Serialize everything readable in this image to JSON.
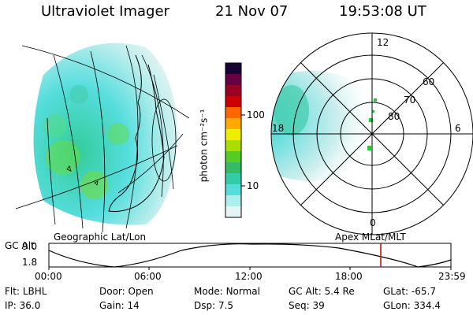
{
  "header": {
    "title": "Ultraviolet Imager",
    "date": "21 Nov 07",
    "time": "19:53:08 UT"
  },
  "colorbar": {
    "label": "photon cm⁻²s⁻¹",
    "ticks": [
      "100",
      "10"
    ],
    "scale": "log"
  },
  "polar": {
    "mlt_labels": {
      "top": "12",
      "left": "18",
      "right": "6",
      "bottom": "0"
    },
    "lat_labels": [
      "60",
      "70",
      "80"
    ]
  },
  "labels": {
    "left_map": "Geographic Lat/Lon",
    "right_map": "Apex MLat/MLT"
  },
  "orbit": {
    "ylabel": "GC Alt",
    "y_ticks": [
      "9.0",
      "1.8"
    ],
    "x_ticks": [
      "00:00",
      "06:00",
      "12:00",
      "18:00",
      "23:59"
    ],
    "marker_color": "#cc0000"
  },
  "info": {
    "row1": [
      {
        "key": "Flt:",
        "val": "LBHL"
      },
      {
        "key": "Door:",
        "val": "Open"
      },
      {
        "key": "Mode:",
        "val": "Normal"
      },
      {
        "key": "GC Alt:",
        "val": "5.4 Re"
      },
      {
        "key": "GLat:",
        "val": "-65.7"
      }
    ],
    "row2": [
      {
        "key": "IP:",
        "val": "36.0"
      },
      {
        "key": "Gain:",
        "val": "14"
      },
      {
        "key": "Dsp:",
        "val": "7.5"
      },
      {
        "key": "Seq:",
        "val": "39"
      },
      {
        "key": "GLon:",
        "val": "334.4"
      }
    ]
  }
}
